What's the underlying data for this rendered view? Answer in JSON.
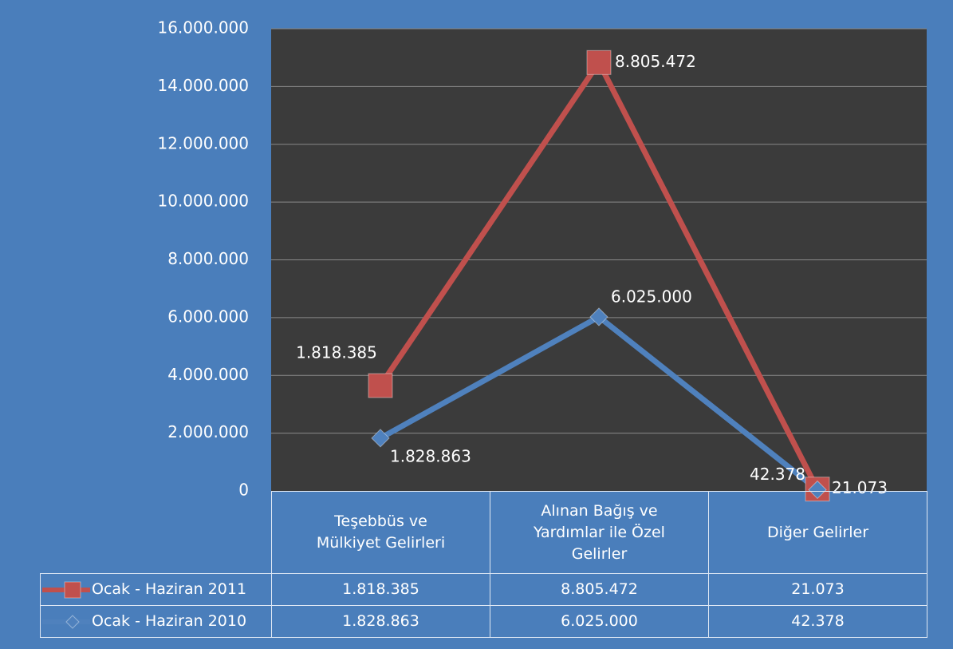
{
  "chart_data": {
    "type": "line",
    "stacked": true,
    "grid": true,
    "categories": [
      "Teşebbüs ve Mülkiyet Gelirleri",
      "Alınan Bağış ve Yardımlar ile Özel Gelirler",
      "Diğer Gelirler"
    ],
    "series": [
      {
        "name": "Ocak - Haziran 2011",
        "color": "#c0504d",
        "marker": "square",
        "values": [
          1818385,
          8805472,
          21073
        ],
        "value_labels": [
          "1.818.385",
          "8.805.472",
          "21.073"
        ]
      },
      {
        "name": "Ocak - Haziran 2010",
        "color": "#4f81bd",
        "marker": "diamond",
        "values": [
          1828863,
          6025000,
          42378
        ],
        "value_labels": [
          "1.828.863",
          "6.025.000",
          "42.378"
        ]
      }
    ],
    "ylim": [
      0,
      16000000
    ],
    "yticks": [
      0,
      {
        "value": 2000000,
        "label": "2.000.000"
      },
      {
        "value": 4000000,
        "label": "4.000.000"
      },
      {
        "value": 6000000,
        "label": "6.000.000"
      },
      {
        "value": 8000000,
        "label": "8.000.000"
      },
      {
        "value": 10000000,
        "label": "10.000.000"
      },
      {
        "value": 12000000,
        "label": "12.000.000"
      },
      {
        "value": 14000000,
        "label": "14.000.000"
      },
      {
        "value": 16000000,
        "label": "16.000.000"
      }
    ]
  }
}
